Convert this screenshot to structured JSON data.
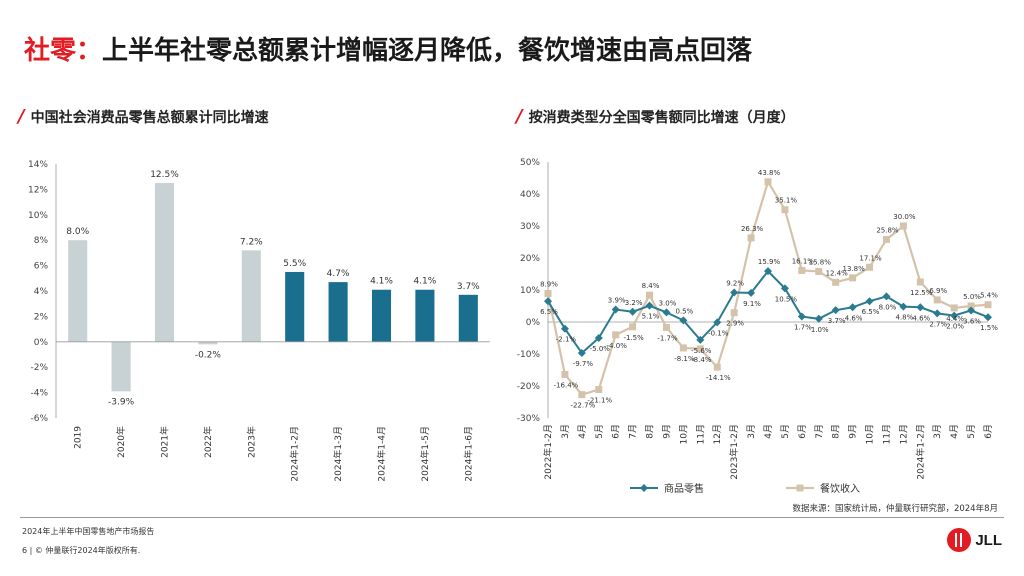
{
  "page": {
    "title_red": "社零：",
    "title_dark": "上半年社零总额累计增幅逐月降低，餐饮增速由高点回落",
    "left_subtitle": "中国社会消费品零售总额累计同比增速",
    "right_subtitle": "按消费类型分全国零售额同比增速（月度）",
    "slash": "/",
    "source": "数据来源：国家统计局，仲量联行研究部，2024年8月",
    "report": "2024年上半年中国零售地产市场报告",
    "copyright": "6 | © 仲量联行2024年版权所有.",
    "logo_text": "JLL"
  },
  "colors": {
    "accent_red": "#e31b23",
    "bar_historic": "#c8d1d3",
    "bar_current": "#1a6f8f",
    "line_retail": "#2a7a90",
    "line_catering": "#d4c3aa"
  },
  "chart_data": [
    {
      "type": "bar",
      "title": "中国社会消费品零售总额累计同比增速",
      "categories": [
        "2019",
        "2020年",
        "2021年",
        "2022年",
        "2023年",
        "2024年1-2月",
        "2024年1-3月",
        "2024年1-4月",
        "2024年1-5月",
        "2024年1-6月"
      ],
      "values": [
        8.0,
        -3.9,
        12.5,
        -0.2,
        7.2,
        5.5,
        4.7,
        4.1,
        4.1,
        3.7
      ],
      "labels": [
        "8.0%",
        "-3.9%",
        "12.5%",
        "-0.2%",
        "7.2%",
        "5.5%",
        "4.7%",
        "4.1%",
        "4.1%",
        "3.7%"
      ],
      "ylim": [
        -6,
        14
      ],
      "yticks": [
        -6,
        -4,
        -2,
        0,
        2,
        4,
        6,
        8,
        10,
        12,
        14
      ],
      "ytick_labels": [
        "-6%",
        "-4%",
        "-2%",
        "0%",
        "2%",
        "4%",
        "6%",
        "8%",
        "10%",
        "12%",
        "14%"
      ],
      "grid": false
    },
    {
      "type": "line",
      "title": "按消费类型分全国零售额同比增速（月度）",
      "categories": [
        "2022年1-2月",
        "3月",
        "4月",
        "5月",
        "6月",
        "7月",
        "8月",
        "9月",
        "10月",
        "11月",
        "12月",
        "2023年1-2月",
        "3月",
        "4月",
        "5月",
        "6月",
        "7月",
        "8月",
        "9月",
        "10月",
        "11月",
        "12月",
        "2024年1-2月",
        "3月",
        "4月",
        "5月",
        "6月"
      ],
      "ylim": [
        -30,
        50
      ],
      "yticks": [
        -30,
        -20,
        -10,
        0,
        10,
        20,
        30,
        40,
        50
      ],
      "ytick_labels": [
        "-30%",
        "-20%",
        "-10%",
        "0%",
        "10%",
        "20%",
        "30%",
        "40%",
        "50%"
      ],
      "legend_position": "bottom",
      "grid": false,
      "series": [
        {
          "name": "商品零售",
          "values": [
            6.5,
            -2.1,
            -9.7,
            -5.0,
            3.9,
            3.2,
            5.1,
            3.0,
            0.5,
            -5.6,
            -0.1,
            9.2,
            9.1,
            15.9,
            10.5,
            1.7,
            1.0,
            3.7,
            4.6,
            6.5,
            8.0,
            4.8,
            4.6,
            2.7,
            2.0,
            3.6,
            1.5
          ],
          "labels": [
            "6.5%",
            "-2.1%",
            "-9.7%",
            "-5.0%",
            "3.9%",
            "3.2%",
            "5.1%",
            "3.0%",
            "0.5%",
            "-5.6%",
            "-0.1%",
            "9.2%",
            "9.1%",
            "15.9%",
            "10.5%",
            "1.7%",
            "1.0%",
            "3.7%",
            "4.6%",
            "6.5%",
            "8.0%",
            "4.8%",
            "4.6%",
            "2.7%",
            "2.0%",
            "3.6%",
            "1.5%"
          ]
        },
        {
          "name": "餐饮收入",
          "values": [
            8.9,
            -16.4,
            -22.7,
            -21.1,
            -4.0,
            -1.5,
            8.4,
            -1.7,
            -8.1,
            -8.4,
            -14.1,
            2.9,
            26.3,
            43.8,
            35.1,
            16.1,
            15.8,
            12.4,
            13.8,
            17.1,
            25.8,
            30.0,
            12.5,
            6.9,
            4.4,
            5.0,
            5.4
          ],
          "labels": [
            "8.9%",
            "-16.4%",
            "-22.7%",
            "-21.1%",
            "-4.0%",
            "-1.5%",
            "8.4%",
            "-1.7%",
            "-8.1%",
            "-8.4%",
            "-14.1%",
            "2.9%",
            "26.3%",
            "43.8%",
            "35.1%",
            "16.1%",
            "15.8%",
            "12.4%",
            "13.8%",
            "17.1%",
            "25.8%",
            "30.0%",
            "12.5%",
            "6.9%",
            "4.4%",
            "5.0%",
            "5.4%"
          ]
        }
      ]
    }
  ]
}
